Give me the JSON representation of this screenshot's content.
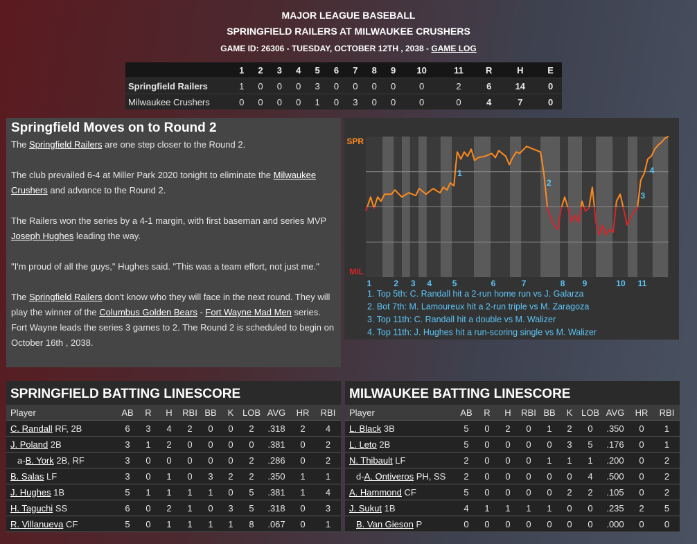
{
  "header": {
    "league": "MAJOR LEAGUE BASEBALL",
    "matchup": "SPRINGFIELD RAILERS AT MILWAUKEE CRUSHERS",
    "game_info": "GAME ID: 26306 - TUESDAY, OCTOBER 12TH , 2038 - ",
    "game_log": "GAME LOG"
  },
  "linescore": {
    "columns": [
      "1",
      "2",
      "3",
      "4",
      "5",
      "6",
      "7",
      "8",
      "9",
      "10",
      "11",
      "R",
      "H",
      "E"
    ],
    "rows": [
      {
        "team": "Springfield Railers",
        "cells": [
          "1",
          "0",
          "0",
          "0",
          "3",
          "0",
          "0",
          "0",
          "0",
          "0",
          "2",
          "6",
          "14",
          "0"
        ]
      },
      {
        "team": "Milwaukee Crushers",
        "cells": [
          "0",
          "0",
          "0",
          "0",
          "1",
          "0",
          "3",
          "0",
          "0",
          "0",
          "0",
          "4",
          "7",
          "0"
        ]
      }
    ]
  },
  "story": {
    "title": "Springfield Moves on to Round 2",
    "paragraphs": [
      [
        "The ",
        {
          "link": "Springfield Railers"
        },
        " are one step closer to the Round 2."
      ],
      [
        "The club prevailed 6-4 at Miller Park 2020 tonight to eliminate the ",
        {
          "link": "Milwaukee Crushers"
        },
        " and advance to the Round 2."
      ],
      [
        "The Railers won the series by a 4-1 margin, with first baseman and series MVP ",
        {
          "link": "Joseph Hughes"
        },
        " leading the way."
      ],
      [
        "\"I'm proud of all the guys,\" Hughes said. \"This was a team effort, not just me.\""
      ],
      [
        "The ",
        {
          "link": "Springfield Railers"
        },
        " don't know who they will face in the next round. They will play the winner of the ",
        {
          "link": "Columbus Golden Bears"
        },
        " - ",
        {
          "link": "Fort Wayne Mad Men"
        },
        " series. Fort Wayne leads the series 3 games to 2. The Round 2 is scheduled to begin on October 16th , 2038."
      ]
    ]
  },
  "chart": {
    "top_label": "SPR",
    "bottom_label": "MIL",
    "xlim": [
      0,
      100
    ],
    "ylim": [
      0,
      100
    ],
    "yticks": [
      25,
      50,
      75
    ],
    "color_above": "#ff8a1e",
    "color_below": "#d8242a",
    "split": 50,
    "bands": [
      [
        5.5,
        9.2
      ],
      [
        11.9,
        14.6
      ],
      [
        17.4,
        20.1
      ],
      [
        24.7,
        28.4
      ],
      [
        35.7,
        41.2
      ],
      [
        47.6,
        51.3
      ],
      [
        57.7,
        64.1
      ],
      [
        66.8,
        71.4
      ],
      [
        76,
        81.5
      ],
      [
        86.5,
        89.7
      ],
      [
        94.7,
        99.8
      ]
    ],
    "xticks": [
      {
        "value": 1.1,
        "label": "1"
      },
      {
        "value": 10,
        "label": "2"
      },
      {
        "value": 15.6,
        "label": "3"
      },
      {
        "value": 21,
        "label": "4"
      },
      {
        "value": 29.3,
        "label": "5"
      },
      {
        "value": 42.1,
        "label": "6"
      },
      {
        "value": 52.2,
        "label": "7"
      },
      {
        "value": 65,
        "label": "8"
      },
      {
        "value": 72.3,
        "label": "9"
      },
      {
        "value": 84.2,
        "label": "10"
      },
      {
        "value": 91.3,
        "label": "11"
      }
    ],
    "x": [
      0,
      1.6,
      2.7,
      3.9,
      5.0,
      6.2,
      8.5,
      9.6,
      11.9,
      14.2,
      16.5,
      17.6,
      19.9,
      22.2,
      24.5,
      25.6,
      26.8,
      27.9,
      29.1,
      29.7,
      30.2,
      31.4,
      32.5,
      33.6,
      34.8,
      35.9,
      37.1,
      39.4,
      41.6,
      42.8,
      43.9,
      46.2,
      47.4,
      48.5,
      49.7,
      50.8,
      53.1,
      55.4,
      57.7,
      58.8,
      60.0,
      61.1,
      62.2,
      63.4,
      64.5,
      65.7,
      66.8,
      68.0,
      69.1,
      70.3,
      71.4,
      72.5,
      73.7,
      74.8,
      76.0,
      77.1,
      78.3,
      79.4,
      80.5,
      81.7,
      82.8,
      84.0,
      85.1,
      86.3,
      87.4,
      88.6,
      89.7,
      90.8,
      92.0,
      93.1,
      94.3,
      95.4,
      96.6,
      97.7,
      98.9,
      100
    ],
    "values": [
      47,
      57,
      49,
      57,
      54,
      59,
      59,
      62,
      57,
      60,
      58,
      63,
      59,
      63,
      60,
      64,
      62,
      67,
      65,
      79,
      89,
      84,
      89,
      86,
      91,
      83,
      85,
      86,
      88,
      85,
      90,
      86,
      80,
      85,
      89,
      88,
      93,
      91,
      89,
      74,
      49,
      42,
      37,
      34,
      49,
      57,
      49,
      39,
      44,
      39,
      54,
      47,
      49,
      64,
      39,
      30,
      37,
      30,
      34,
      32,
      54,
      59,
      49,
      37,
      42,
      47,
      49,
      69,
      74,
      84,
      86,
      91,
      94,
      96,
      99,
      100
    ],
    "annotations": [
      {
        "label": "1",
        "x": 31,
        "y": 72
      },
      {
        "label": "2",
        "x": 60.5,
        "y": 65
      },
      {
        "label": "3",
        "x": 91.5,
        "y": 56
      },
      {
        "label": "4",
        "x": 94.5,
        "y": 74
      }
    ],
    "notes": [
      "1. Top 5th: C. Randall hit a 2-run home run vs J. Galarza",
      "2. Bot 7th: M. Lamoureux hit a 2-run triple vs M. Zaragoza",
      "3. Top 11th: C. Randall hit a double vs M. Walizer",
      "4. Top 11th: J. Hughes hit a run-scoring single vs M. Walizer"
    ]
  },
  "batting": [
    {
      "title": "SPRINGFIELD BATTING LINESCORE",
      "columns": [
        "Player",
        "AB",
        "R",
        "H",
        "RBI",
        "BB",
        "K",
        "LOB",
        "AVG",
        "HR",
        "RBI"
      ],
      "rows": [
        {
          "name": "C. Randall",
          "pos": "RF, 2B",
          "stats": [
            "6",
            "3",
            "4",
            "2",
            "0",
            "0",
            "2",
            ".318",
            "2",
            "4"
          ]
        },
        {
          "name": "J. Poland",
          "pos": "2B",
          "stats": [
            "3",
            "1",
            "2",
            "0",
            "0",
            "0",
            "0",
            ".381",
            "0",
            "2"
          ]
        },
        {
          "indent": true,
          "prefix": "a-",
          "name": "B. York",
          "pos": "2B, RF",
          "stats": [
            "3",
            "0",
            "0",
            "0",
            "0",
            "0",
            "2",
            ".286",
            "0",
            "2"
          ]
        },
        {
          "name": "B. Salas",
          "pos": "LF",
          "stats": [
            "3",
            "0",
            "1",
            "0",
            "3",
            "2",
            "2",
            ".350",
            "1",
            "1"
          ]
        },
        {
          "name": "J. Hughes",
          "pos": "1B",
          "stats": [
            "5",
            "1",
            "1",
            "1",
            "1",
            "0",
            "5",
            ".381",
            "1",
            "4"
          ]
        },
        {
          "name": "H. Taguchi",
          "pos": "SS",
          "stats": [
            "6",
            "0",
            "2",
            "1",
            "0",
            "3",
            "5",
            ".318",
            "0",
            "3"
          ]
        },
        {
          "name": "R. Villanueva",
          "pos": "CF",
          "stats": [
            "5",
            "0",
            "1",
            "1",
            "1",
            "1",
            "8",
            ".067",
            "0",
            "1"
          ]
        }
      ]
    },
    {
      "title": "MILWAUKEE BATTING LINESCORE",
      "columns": [
        "Player",
        "AB",
        "R",
        "H",
        "RBI",
        "BB",
        "K",
        "LOB",
        "AVG",
        "HR",
        "RBI"
      ],
      "rows": [
        {
          "name": "L. Black",
          "pos": "3B",
          "stats": [
            "5",
            "0",
            "2",
            "0",
            "1",
            "2",
            "0",
            ".350",
            "0",
            "1"
          ]
        },
        {
          "name": "L. Leto",
          "pos": "2B",
          "stats": [
            "5",
            "0",
            "0",
            "0",
            "0",
            "3",
            "5",
            ".176",
            "0",
            "1"
          ]
        },
        {
          "name": "N. Thibault",
          "pos": "LF",
          "stats": [
            "2",
            "0",
            "0",
            "0",
            "1",
            "1",
            "1",
            ".200",
            "0",
            "2"
          ]
        },
        {
          "indent": true,
          "prefix": "d-",
          "name": "A. Ontiveros",
          "pos": "PH, SS",
          "stats": [
            "2",
            "0",
            "0",
            "0",
            "0",
            "0",
            "4",
            ".500",
            "0",
            "2"
          ]
        },
        {
          "name": "A. Hammond",
          "pos": "CF",
          "stats": [
            "5",
            "0",
            "0",
            "0",
            "0",
            "2",
            "2",
            ".105",
            "0",
            "2"
          ]
        },
        {
          "name": "J. Sukut",
          "pos": "1B",
          "stats": [
            "4",
            "1",
            "1",
            "1",
            "1",
            "0",
            "0",
            ".235",
            "2",
            "5"
          ]
        },
        {
          "indent": true,
          "name": "B. Van Gieson",
          "pos": "P",
          "stats": [
            "0",
            "0",
            "0",
            "0",
            "0",
            "0",
            "0",
            ".000",
            "0",
            "0"
          ]
        }
      ]
    }
  ]
}
